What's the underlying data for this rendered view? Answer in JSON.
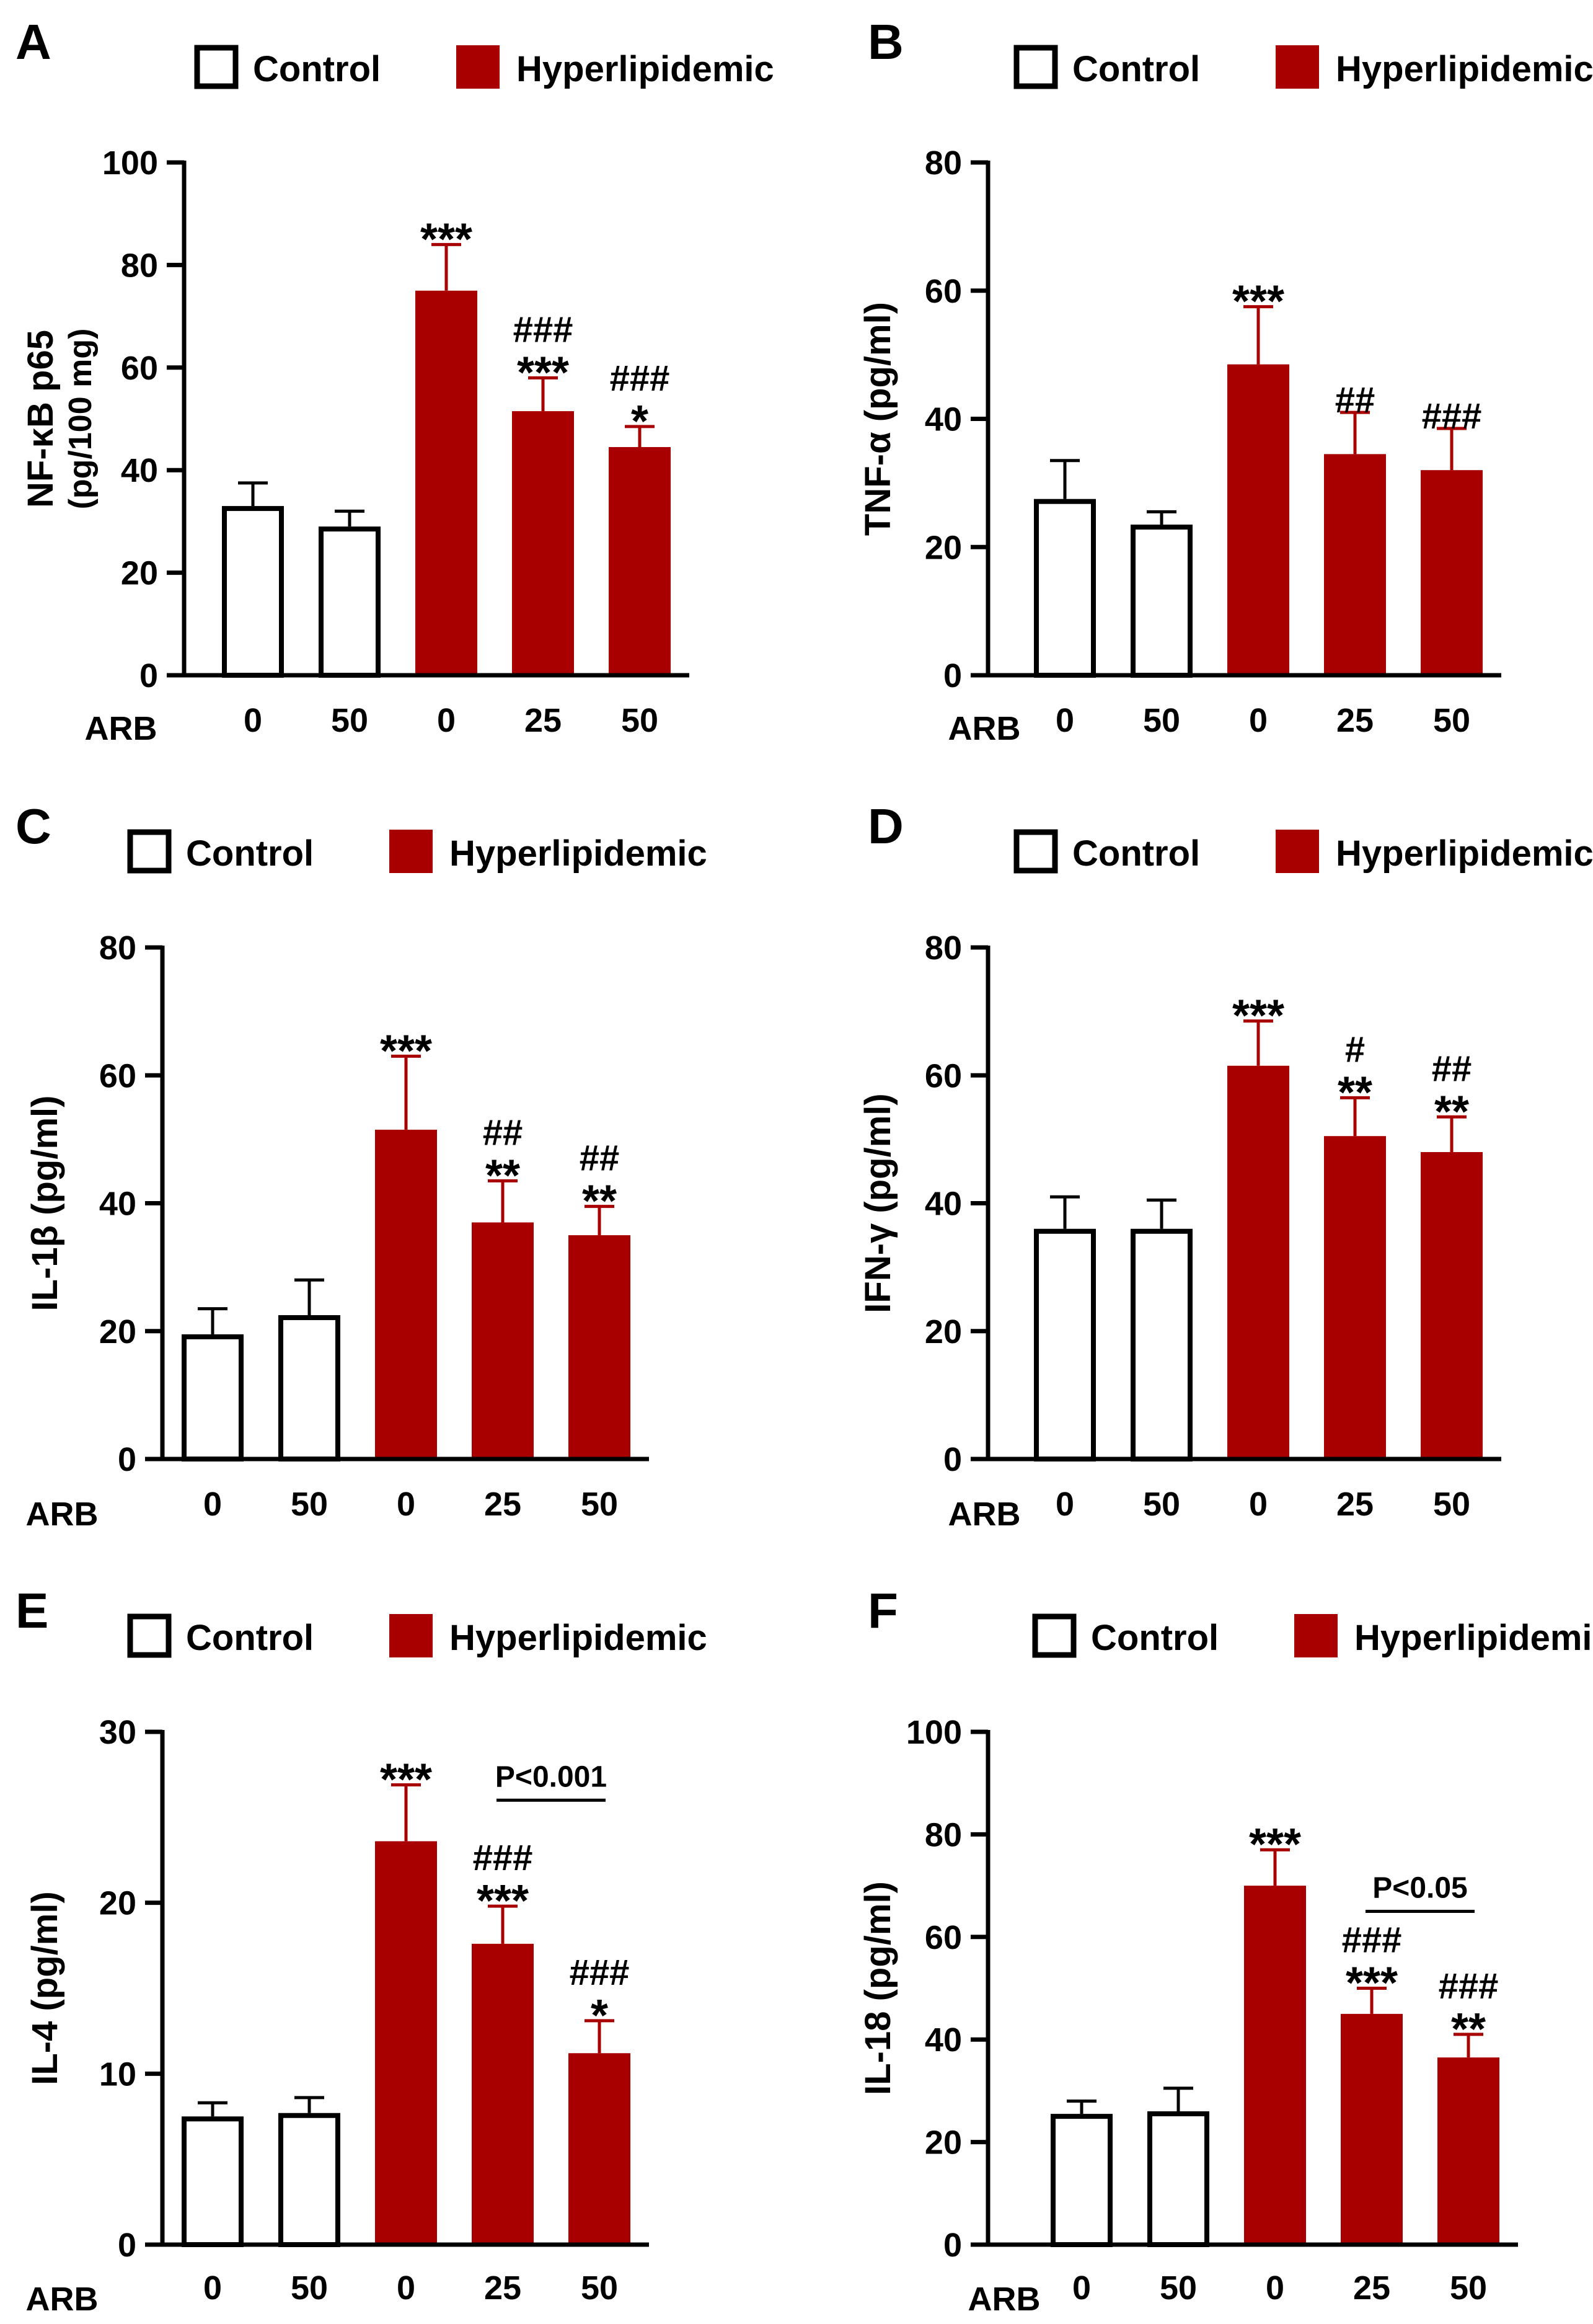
{
  "colors": {
    "control_fill": "#ffffff",
    "hyper_fill": "#a80000",
    "hyper_error": "#a80000",
    "axis": "#000000"
  },
  "legend": {
    "control": "Control",
    "hyper": "Hyperlipidemic"
  },
  "x_axis_label": "ARB",
  "chart_data": [
    {
      "panel": "A",
      "type": "bar",
      "ylabel": "NF-κB p65",
      "ylabel_sub": "(pg/100 mg)",
      "ylim": [
        0,
        100
      ],
      "yticks": [
        "0",
        "20",
        "40",
        "60",
        "80",
        "100"
      ],
      "categories": [
        "0",
        "50",
        "0",
        "25",
        "50"
      ],
      "groups": [
        "Control",
        "Control",
        "Hyperlipidemic",
        "Hyperlipidemic",
        "Hyperlipidemic"
      ],
      "values": [
        33,
        29,
        75,
        51.5,
        44.5
      ],
      "errors": [
        4.5,
        3,
        9,
        6.5,
        4
      ],
      "star_marks": [
        "",
        "",
        "***",
        "***",
        "*"
      ],
      "hash_marks": [
        "",
        "",
        "",
        "###",
        "###"
      ],
      "bracket": null
    },
    {
      "panel": "B",
      "type": "bar",
      "ylabel": "TNF-α (pg/ml)",
      "ylabel_sub": "",
      "ylim": [
        0,
        80
      ],
      "yticks": [
        "0",
        "20",
        "40",
        "60",
        "80"
      ],
      "categories": [
        "0",
        "50",
        "0",
        "25",
        "50"
      ],
      "groups": [
        "Control",
        "Control",
        "Hyperlipidemic",
        "Hyperlipidemic",
        "Hyperlipidemic"
      ],
      "values": [
        27.5,
        23.5,
        48.5,
        34.5,
        32
      ],
      "errors": [
        6,
        2,
        9,
        6.5,
        6.5
      ],
      "star_marks": [
        "",
        "",
        "***",
        "",
        ""
      ],
      "hash_marks": [
        "",
        "",
        "",
        "##",
        "###"
      ],
      "bracket": null
    },
    {
      "panel": "C",
      "type": "bar",
      "ylabel": "IL-1β (pg/ml)",
      "ylabel_sub": "",
      "ylim": [
        0,
        80
      ],
      "yticks": [
        "0",
        "20",
        "40",
        "60",
        "80"
      ],
      "categories": [
        "0",
        "50",
        "0",
        "25",
        "50"
      ],
      "groups": [
        "Control",
        "Control",
        "Hyperlipidemic",
        "Hyperlipidemic",
        "Hyperlipidemic"
      ],
      "values": [
        19.5,
        22.5,
        51.5,
        37,
        35
      ],
      "errors": [
        4,
        5.5,
        11.5,
        6.5,
        4.5
      ],
      "star_marks": [
        "",
        "",
        "***",
        "**",
        "**"
      ],
      "hash_marks": [
        "",
        "",
        "",
        "##",
        "##"
      ],
      "bracket": null
    },
    {
      "panel": "D",
      "type": "bar",
      "ylabel": "IFN-γ (pg/ml)",
      "ylabel_sub": "",
      "ylim": [
        0,
        80
      ],
      "yticks": [
        "0",
        "20",
        "40",
        "60",
        "80"
      ],
      "categories": [
        "0",
        "50",
        "0",
        "25",
        "50"
      ],
      "groups": [
        "Control",
        "Control",
        "Hyperlipidemic",
        "Hyperlipidemic",
        "Hyperlipidemic"
      ],
      "values": [
        36,
        36,
        61.5,
        50.5,
        48
      ],
      "errors": [
        5,
        4.5,
        7,
        6,
        5.5
      ],
      "star_marks": [
        "",
        "",
        "***",
        "**",
        "**"
      ],
      "hash_marks": [
        "",
        "",
        "",
        "#",
        "##"
      ],
      "bracket": null
    },
    {
      "panel": "E",
      "type": "bar",
      "ylabel": "IL-4 (pg/ml)",
      "ylabel_sub": "",
      "ylim": [
        0,
        30
      ],
      "yticks": [
        "0",
        "10",
        "20",
        "30"
      ],
      "categories": [
        "0",
        "50",
        "0",
        "25",
        "50"
      ],
      "groups": [
        "Control",
        "Control",
        "Hyperlipidemic",
        "Hyperlipidemic",
        "Hyperlipidemic"
      ],
      "values": [
        7.5,
        7.7,
        23.6,
        17.6,
        11.2
      ],
      "errors": [
        0.8,
        0.9,
        3.3,
        2.2,
        1.9
      ],
      "star_marks": [
        "",
        "",
        "***",
        "***",
        "*"
      ],
      "hash_marks": [
        "",
        "",
        "",
        "###",
        "###"
      ],
      "bracket": {
        "from": 3,
        "to": 4,
        "label": "P<0.001",
        "y": 26
      }
    },
    {
      "panel": "F",
      "type": "bar",
      "ylabel": "IL-18 (pg/ml)",
      "ylabel_sub": "",
      "ylim": [
        0,
        100
      ],
      "yticks": [
        "0",
        "20",
        "40",
        "60",
        "80",
        "100"
      ],
      "categories": [
        "0",
        "50",
        "0",
        "25",
        "50"
      ],
      "groups": [
        "Control",
        "Control",
        "Hyperlipidemic",
        "Hyperlipidemic",
        "Hyperlipidemic"
      ],
      "values": [
        25.5,
        26,
        70,
        45,
        36.5
      ],
      "errors": [
        2.5,
        4.5,
        7,
        5,
        4.5
      ],
      "star_marks": [
        "",
        "",
        "***",
        "***",
        "**"
      ],
      "hash_marks": [
        "",
        "",
        "",
        "###",
        "###"
      ],
      "bracket": {
        "from": 3,
        "to": 4,
        "label": "P<0.05",
        "y": 65
      }
    }
  ]
}
